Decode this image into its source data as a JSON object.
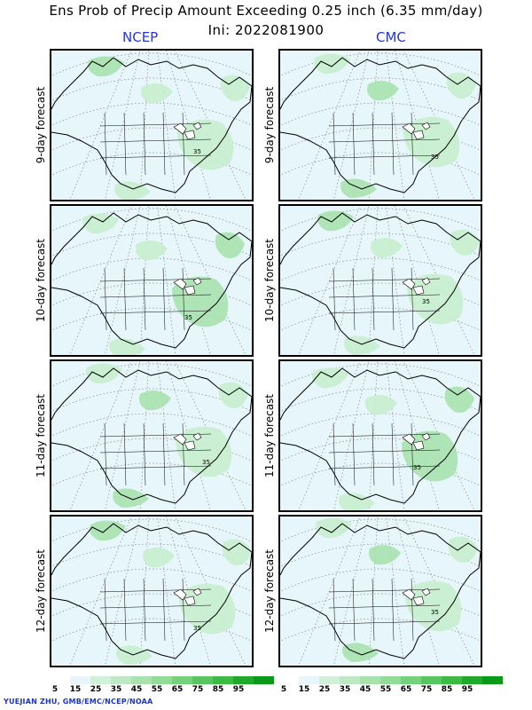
{
  "title": "Ens Prob of Precip Amount Exceeding 0.25 inch (6.35 mm/day)",
  "init_label": "Ini: 2022081900",
  "models": [
    "NCEP",
    "CMC"
  ],
  "rows": [
    {
      "label": "9-day forecast"
    },
    {
      "label": "10-day forecast"
    },
    {
      "label": "11-day forecast"
    },
    {
      "label": "12-day forecast"
    }
  ],
  "contour_label": "35",
  "colorbar": {
    "labels": [
      "5",
      "15",
      "25",
      "35",
      "45",
      "55",
      "65",
      "75",
      "85",
      "95"
    ],
    "colors": [
      "#ffffff",
      "#e6f6fb",
      "#d2f0d8",
      "#bfe9c4",
      "#a9e2af",
      "#93db98",
      "#76d17c",
      "#58c65f",
      "#3cba44",
      "#1fa82a",
      "#0a9a1a"
    ]
  },
  "credit": "YUEJIAN ZHU, GMB/EMC/NCEP/NOAA"
}
